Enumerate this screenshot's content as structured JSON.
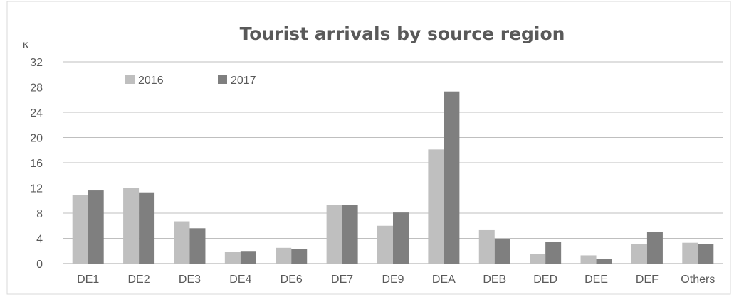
{
  "chart_data": {
    "type": "bar",
    "title": "Tourist arrivals by source region",
    "unit_label": "K",
    "categories": [
      "DE1",
      "DE2",
      "DE3",
      "DE4",
      "DE6",
      "DE7",
      "DE9",
      "DEA",
      "DEB",
      "DED",
      "DEE",
      "DEF",
      "Others"
    ],
    "series": [
      {
        "name": "2016",
        "color": "#bfbfbf",
        "values": [
          10.9,
          12.0,
          6.7,
          1.9,
          2.5,
          9.3,
          6.0,
          18.1,
          5.3,
          1.5,
          1.3,
          3.1,
          3.3
        ]
      },
      {
        "name": "2017",
        "color": "#7f7f7f",
        "values": [
          11.6,
          11.3,
          5.6,
          2.0,
          2.3,
          9.3,
          8.1,
          27.3,
          3.9,
          3.4,
          0.7,
          5.0,
          3.1
        ]
      }
    ],
    "ylim": [
      0,
      32
    ],
    "yticks": [
      0,
      4,
      8,
      12,
      16,
      20,
      24,
      28,
      32
    ],
    "grid": true,
    "legend_position": "top-left"
  }
}
